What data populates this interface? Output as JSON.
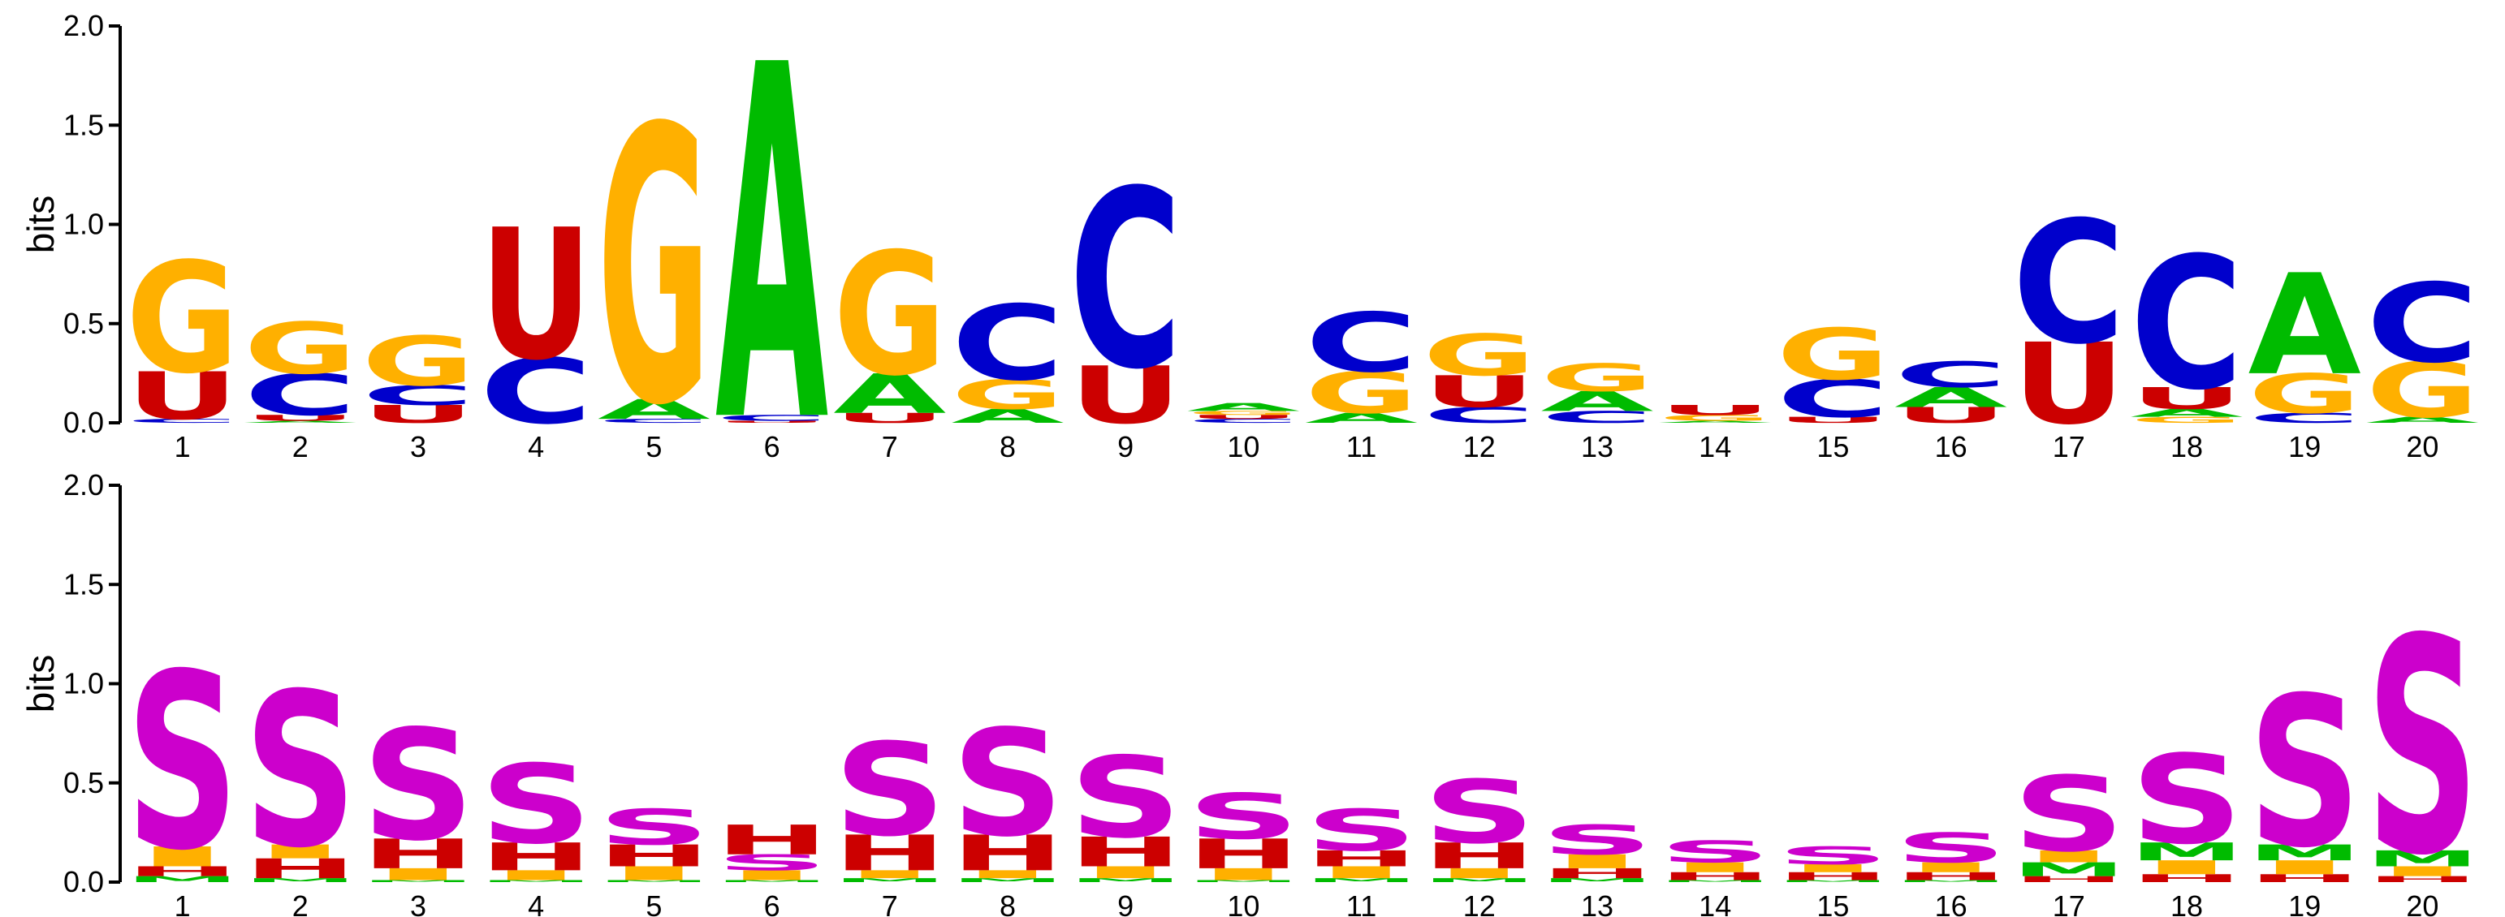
{
  "chart_data": [
    {
      "type": "sequence-logo",
      "ylabel": "bits",
      "ylim": [
        0,
        2.0
      ],
      "yticks": [
        "0.0",
        "0.5",
        "1.0",
        "1.5",
        "2.0"
      ],
      "positions": [
        "1",
        "2",
        "3",
        "4",
        "5",
        "6",
        "7",
        "8",
        "9",
        "10",
        "11",
        "12",
        "13",
        "14",
        "15",
        "16",
        "17",
        "18",
        "19",
        "20"
      ],
      "colors": {
        "A": "#00bb00",
        "C": "#0000cc",
        "G": "#ffb000",
        "U": "#cc0000"
      },
      "stacks": [
        [
          [
            "C",
            0.02
          ],
          [
            "U",
            0.24
          ],
          [
            "G",
            0.56
          ]
        ],
        [
          [
            "A",
            0.01
          ],
          [
            "U",
            0.03
          ],
          [
            "C",
            0.21
          ],
          [
            "G",
            0.26
          ]
        ],
        [
          [
            "U",
            0.09
          ],
          [
            "C",
            0.1
          ],
          [
            "G",
            0.25
          ]
        ],
        [
          [
            "C",
            0.33
          ],
          [
            "U",
            0.66
          ]
        ],
        [
          [
            "C",
            0.02
          ],
          [
            "A",
            0.1
          ],
          [
            "G",
            1.39
          ]
        ],
        [
          [
            "U",
            0.01
          ],
          [
            "C",
            0.03
          ],
          [
            "A",
            1.79
          ]
        ],
        [
          [
            "U",
            0.05
          ],
          [
            "A",
            0.2
          ],
          [
            "G",
            0.62
          ]
        ],
        [
          [
            "A",
            0.07
          ],
          [
            "G",
            0.15
          ],
          [
            "C",
            0.38
          ]
        ],
        [
          [
            "U",
            0.29
          ],
          [
            "C",
            0.9
          ]
        ],
        [
          [
            "C",
            0.02
          ],
          [
            "U",
            0.02
          ],
          [
            "G",
            0.02
          ],
          [
            "A",
            0.04
          ]
        ],
        [
          [
            "A",
            0.05
          ],
          [
            "G",
            0.21
          ],
          [
            "C",
            0.3
          ]
        ],
        [
          [
            "C",
            0.08
          ],
          [
            "U",
            0.16
          ],
          [
            "G",
            0.21
          ]
        ],
        [
          [
            "C",
            0.06
          ],
          [
            "A",
            0.1
          ],
          [
            "G",
            0.14
          ]
        ],
        [
          [
            "A",
            0.01
          ],
          [
            "G",
            0.03
          ],
          [
            "U",
            0.05
          ]
        ],
        [
          [
            "U",
            0.03
          ],
          [
            "C",
            0.19
          ],
          [
            "G",
            0.26
          ]
        ],
        [
          [
            "U",
            0.08
          ],
          [
            "A",
            0.1
          ],
          [
            "C",
            0.13
          ]
        ],
        [
          [
            "U",
            0.41
          ],
          [
            "C",
            0.62
          ]
        ],
        [
          [
            "G",
            0.03
          ],
          [
            "A",
            0.04
          ],
          [
            "U",
            0.11
          ],
          [
            "C",
            0.67
          ]
        ],
        [
          [
            "C",
            0.05
          ],
          [
            "G",
            0.2
          ],
          [
            "A",
            0.51
          ]
        ],
        [
          [
            "A",
            0.03
          ],
          [
            "G",
            0.28
          ],
          [
            "C",
            0.4
          ]
        ]
      ]
    },
    {
      "type": "sequence-logo",
      "ylabel": "bits",
      "ylim": [
        0,
        2.0
      ],
      "yticks": [
        "0.0",
        "0.5",
        "1.0",
        "1.5",
        "2.0"
      ],
      "positions": [
        "1",
        "2",
        "3",
        "4",
        "5",
        "6",
        "7",
        "8",
        "9",
        "10",
        "11",
        "12",
        "13",
        "14",
        "15",
        "16",
        "17",
        "18",
        "19",
        "20"
      ],
      "colors": {
        "M": "#00bb00",
        "H": "#cc0000",
        "I": "#ffb000",
        "S": "#cc00cc"
      },
      "stacks": [
        [
          [
            "M",
            0.03
          ],
          [
            "H",
            0.05
          ],
          [
            "I",
            0.1
          ],
          [
            "S",
            0.89
          ]
        ],
        [
          [
            "M",
            0.02
          ],
          [
            "H",
            0.1
          ],
          [
            "I",
            0.07
          ],
          [
            "S",
            0.78
          ]
        ],
        [
          [
            "M",
            0.01
          ],
          [
            "I",
            0.06
          ],
          [
            "H",
            0.15
          ],
          [
            "S",
            0.56
          ]
        ],
        [
          [
            "M",
            0.01
          ],
          [
            "I",
            0.05
          ],
          [
            "H",
            0.14
          ],
          [
            "S",
            0.4
          ]
        ],
        [
          [
            "M",
            0.01
          ],
          [
            "I",
            0.07
          ],
          [
            "H",
            0.11
          ],
          [
            "S",
            0.18
          ]
        ],
        [
          [
            "M",
            0.01
          ],
          [
            "I",
            0.05
          ],
          [
            "S",
            0.08
          ],
          [
            "H",
            0.15
          ]
        ],
        [
          [
            "M",
            0.02
          ],
          [
            "I",
            0.04
          ],
          [
            "H",
            0.18
          ],
          [
            "S",
            0.47
          ]
        ],
        [
          [
            "M",
            0.02
          ],
          [
            "I",
            0.04
          ],
          [
            "H",
            0.18
          ],
          [
            "S",
            0.54
          ]
        ],
        [
          [
            "M",
            0.02
          ],
          [
            "I",
            0.06
          ],
          [
            "H",
            0.15
          ],
          [
            "S",
            0.41
          ]
        ],
        [
          [
            "M",
            0.01
          ],
          [
            "I",
            0.06
          ],
          [
            "H",
            0.15
          ],
          [
            "S",
            0.23
          ]
        ],
        [
          [
            "M",
            0.02
          ],
          [
            "I",
            0.06
          ],
          [
            "H",
            0.08
          ],
          [
            "S",
            0.21
          ]
        ],
        [
          [
            "M",
            0.02
          ],
          [
            "I",
            0.05
          ],
          [
            "H",
            0.13
          ],
          [
            "S",
            0.32
          ]
        ],
        [
          [
            "M",
            0.02
          ],
          [
            "H",
            0.05
          ],
          [
            "I",
            0.07
          ],
          [
            "S",
            0.15
          ]
        ],
        [
          [
            "M",
            0.01
          ],
          [
            "H",
            0.04
          ],
          [
            "I",
            0.05
          ],
          [
            "S",
            0.11
          ]
        ],
        [
          [
            "M",
            0.01
          ],
          [
            "H",
            0.04
          ],
          [
            "I",
            0.04
          ],
          [
            "S",
            0.09
          ]
        ],
        [
          [
            "M",
            0.01
          ],
          [
            "H",
            0.04
          ],
          [
            "I",
            0.05
          ],
          [
            "S",
            0.15
          ]
        ],
        [
          [
            "H",
            0.03
          ],
          [
            "M",
            0.07
          ],
          [
            "I",
            0.06
          ],
          [
            "S",
            0.38
          ]
        ],
        [
          [
            "H",
            0.04
          ],
          [
            "I",
            0.07
          ],
          [
            "M",
            0.09
          ],
          [
            "S",
            0.45
          ]
        ],
        [
          [
            "H",
            0.04
          ],
          [
            "I",
            0.07
          ],
          [
            "M",
            0.08
          ],
          [
            "S",
            0.76
          ]
        ],
        [
          [
            "H",
            0.03
          ],
          [
            "I",
            0.05
          ],
          [
            "M",
            0.08
          ],
          [
            "S",
            1.09
          ]
        ]
      ]
    }
  ]
}
